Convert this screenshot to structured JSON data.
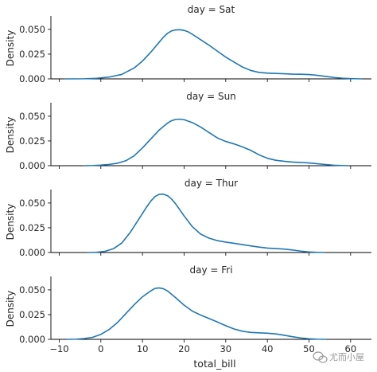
{
  "chart_data": {
    "type": "line",
    "kind": "kde-facet-grid",
    "xlabel": "total_bill",
    "ylabel": "Density",
    "xlim": [
      -12,
      65
    ],
    "ylim": [
      0,
      0.062
    ],
    "xticks": [
      -10,
      0,
      10,
      20,
      30,
      40,
      50,
      60
    ],
    "xtick_labels": [
      "−10",
      "0",
      "10",
      "20",
      "30",
      "40",
      "50",
      "60"
    ],
    "yticks": [
      0,
      0.025,
      0.05
    ],
    "ytick_labels": [
      "0.000",
      "0.025",
      "0.050"
    ],
    "line_color": "#1f77b4",
    "grid": false,
    "panels": [
      {
        "title": "day = Sat",
        "points": [
          [
            -8.5,
            0
          ],
          [
            -4,
            0.0001
          ],
          [
            -1,
            0.0006
          ],
          [
            2,
            0.0018
          ],
          [
            5,
            0.0045
          ],
          [
            8,
            0.011
          ],
          [
            10,
            0.018
          ],
          [
            12,
            0.027
          ],
          [
            14,
            0.037
          ],
          [
            15,
            0.042
          ],
          [
            16,
            0.046
          ],
          [
            17,
            0.0485
          ],
          [
            18,
            0.0495
          ],
          [
            19,
            0.0497
          ],
          [
            20,
            0.049
          ],
          [
            21,
            0.0475
          ],
          [
            22,
            0.045
          ],
          [
            24,
            0.0395
          ],
          [
            26,
            0.034
          ],
          [
            28,
            0.028
          ],
          [
            30,
            0.022
          ],
          [
            32,
            0.017
          ],
          [
            34,
            0.012
          ],
          [
            36,
            0.0085
          ],
          [
            38,
            0.0065
          ],
          [
            40,
            0.0058
          ],
          [
            42,
            0.0055
          ],
          [
            44,
            0.0052
          ],
          [
            46,
            0.0048
          ],
          [
            48,
            0.0047
          ],
          [
            50,
            0.0044
          ],
          [
            52,
            0.0036
          ],
          [
            54,
            0.0025
          ],
          [
            56,
            0.0014
          ],
          [
            58,
            0.0007
          ],
          [
            60,
            0.0003
          ],
          [
            62.5,
            0
          ]
        ]
      },
      {
        "title": "day = Sun",
        "points": [
          [
            -4,
            0
          ],
          [
            -2,
            0.0002
          ],
          [
            0,
            0.0006
          ],
          [
            2,
            0.0013
          ],
          [
            4,
            0.0025
          ],
          [
            6,
            0.005
          ],
          [
            8,
            0.01
          ],
          [
            10,
            0.018
          ],
          [
            12,
            0.027
          ],
          [
            14,
            0.036
          ],
          [
            16,
            0.043
          ],
          [
            17,
            0.0455
          ],
          [
            18,
            0.0468
          ],
          [
            19,
            0.047
          ],
          [
            20,
            0.0465
          ],
          [
            22,
            0.0435
          ],
          [
            24,
            0.039
          ],
          [
            26,
            0.0335
          ],
          [
            28,
            0.028
          ],
          [
            30,
            0.0245
          ],
          [
            32,
            0.022
          ],
          [
            34,
            0.019
          ],
          [
            36,
            0.0155
          ],
          [
            38,
            0.011
          ],
          [
            40,
            0.0075
          ],
          [
            42,
            0.0055
          ],
          [
            44,
            0.0045
          ],
          [
            46,
            0.0037
          ],
          [
            48,
            0.0033
          ],
          [
            50,
            0.0028
          ],
          [
            52,
            0.002
          ],
          [
            54,
            0.0012
          ],
          [
            56,
            0.0005
          ],
          [
            58,
            0.0002
          ],
          [
            59.5,
            0
          ]
        ]
      },
      {
        "title": "day = Thur",
        "points": [
          [
            -3,
            0
          ],
          [
            -1,
            0.0003
          ],
          [
            1,
            0.0012
          ],
          [
            3,
            0.0038
          ],
          [
            5,
            0.0095
          ],
          [
            7,
            0.02
          ],
          [
            9,
            0.033
          ],
          [
            11,
            0.046
          ],
          [
            12,
            0.052
          ],
          [
            13,
            0.0565
          ],
          [
            14,
            0.0588
          ],
          [
            15,
            0.059
          ],
          [
            16,
            0.0575
          ],
          [
            17,
            0.054
          ],
          [
            18,
            0.049
          ],
          [
            20,
            0.037
          ],
          [
            22,
            0.026
          ],
          [
            24,
            0.0185
          ],
          [
            26,
            0.0145
          ],
          [
            28,
            0.012
          ],
          [
            30,
            0.0105
          ],
          [
            32,
            0.0093
          ],
          [
            34,
            0.008
          ],
          [
            36,
            0.0067
          ],
          [
            38,
            0.0055
          ],
          [
            40,
            0.0045
          ],
          [
            42,
            0.004
          ],
          [
            44,
            0.0035
          ],
          [
            46,
            0.0026
          ],
          [
            48,
            0.0014
          ],
          [
            50,
            0.0006
          ],
          [
            52,
            0.0002
          ],
          [
            53.5,
            0
          ]
        ]
      },
      {
        "title": "day = Fri",
        "points": [
          [
            -8,
            0
          ],
          [
            -6,
            0.0002
          ],
          [
            -4,
            0.0008
          ],
          [
            -2,
            0.002
          ],
          [
            0,
            0.005
          ],
          [
            2,
            0.01
          ],
          [
            4,
            0.017
          ],
          [
            6,
            0.026
          ],
          [
            8,
            0.035
          ],
          [
            10,
            0.043
          ],
          [
            12,
            0.049
          ],
          [
            13,
            0.0515
          ],
          [
            14,
            0.052
          ],
          [
            15,
            0.0512
          ],
          [
            16,
            0.049
          ],
          [
            18,
            0.042
          ],
          [
            20,
            0.0345
          ],
          [
            22,
            0.0285
          ],
          [
            24,
            0.0245
          ],
          [
            26,
            0.021
          ],
          [
            28,
            0.0175
          ],
          [
            30,
            0.0138
          ],
          [
            32,
            0.0105
          ],
          [
            34,
            0.0082
          ],
          [
            36,
            0.007
          ],
          [
            38,
            0.0066
          ],
          [
            40,
            0.0062
          ],
          [
            42,
            0.0055
          ],
          [
            44,
            0.0042
          ],
          [
            46,
            0.0027
          ],
          [
            48,
            0.0014
          ],
          [
            50,
            0.0006
          ],
          [
            52,
            0.0002
          ],
          [
            54,
            0
          ]
        ]
      }
    ]
  },
  "watermark": {
    "text": "尤而小屋",
    "icon": "wechat-icon",
    "color": "#9a9a9a"
  }
}
